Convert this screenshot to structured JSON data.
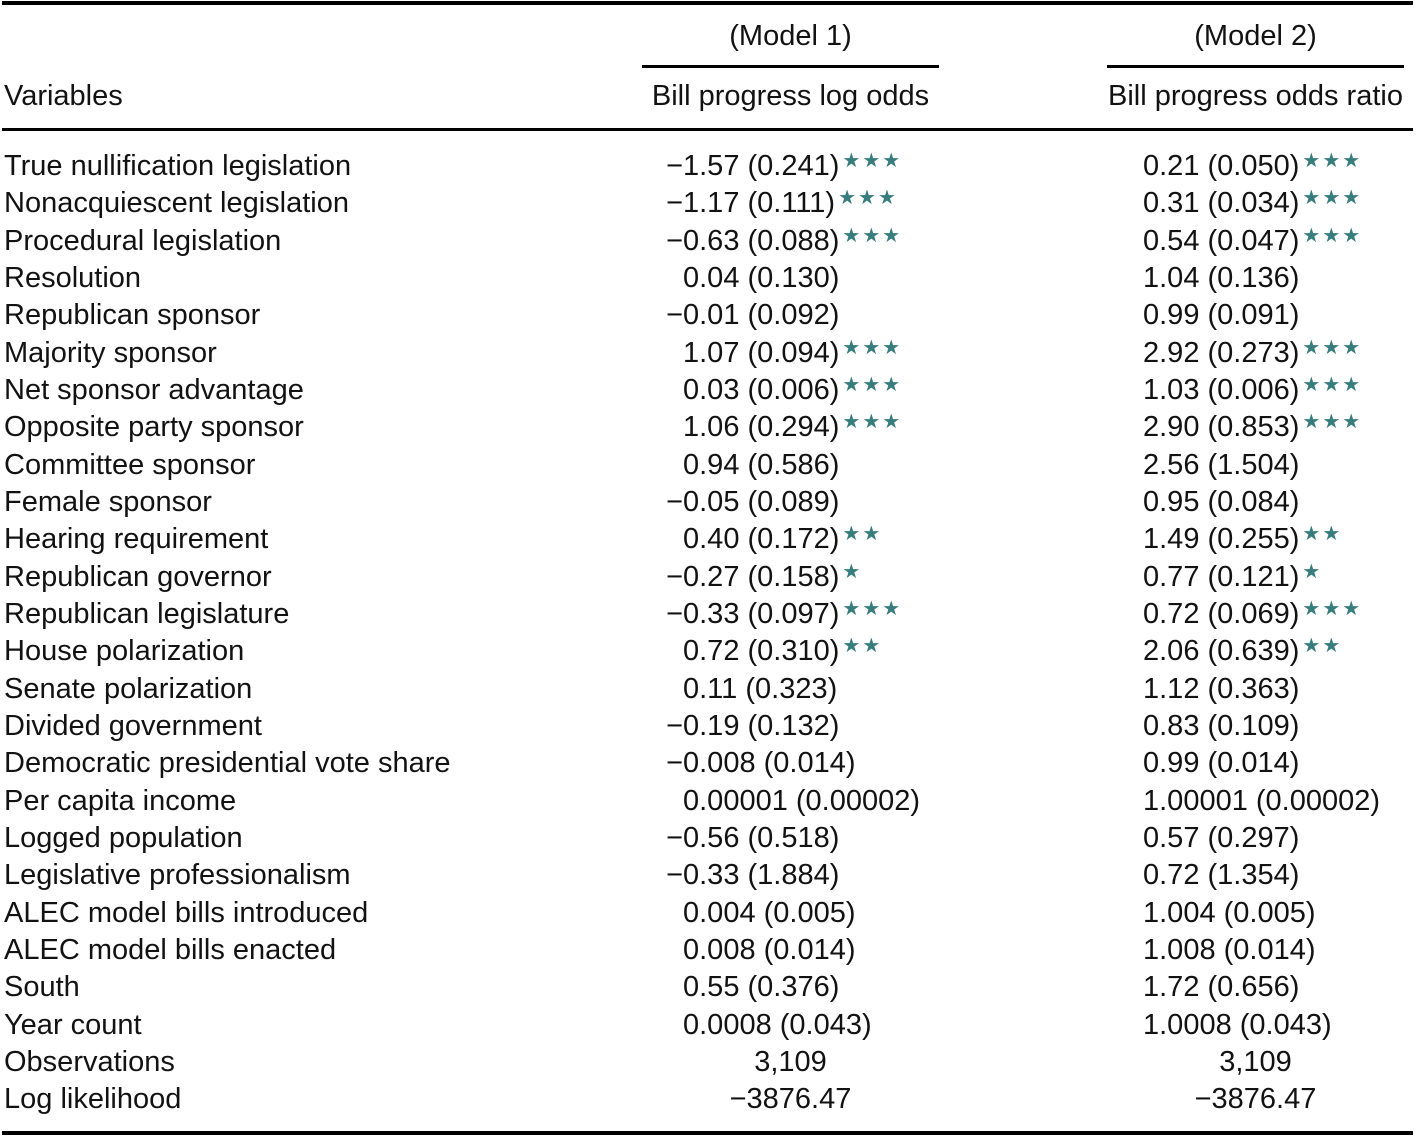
{
  "table": {
    "sig_color": "#377d7d",
    "header": {
      "variables_label": "Variables",
      "model1_label": "(Model 1)",
      "model2_label": "(Model 2)",
      "model1_col": "Bill progress log odds",
      "model2_col": "Bill progress odds ratio"
    },
    "rows": [
      {
        "type": "coef",
        "label": "True nullification legislation",
        "m1": {
          "sign": "−",
          "val": "1.57 (0.241)",
          "stars": "***"
        },
        "m2": {
          "sign": "",
          "val": "0.21 (0.050)",
          "stars": "***"
        }
      },
      {
        "type": "coef",
        "label": "Nonacquiescent legislation",
        "m1": {
          "sign": "−",
          "val": "1.17 (0.111)",
          "stars": "***"
        },
        "m2": {
          "sign": "",
          "val": "0.31 (0.034)",
          "stars": "***"
        }
      },
      {
        "type": "coef",
        "label": "Procedural legislation",
        "m1": {
          "sign": "−",
          "val": "0.63 (0.088)",
          "stars": "***"
        },
        "m2": {
          "sign": "",
          "val": "0.54 (0.047)",
          "stars": "***"
        }
      },
      {
        "type": "coef",
        "label": "Resolution",
        "m1": {
          "sign": "",
          "val": "0.04 (0.130)",
          "stars": ""
        },
        "m2": {
          "sign": "",
          "val": "1.04 (0.136)",
          "stars": ""
        }
      },
      {
        "type": "coef",
        "label": "Republican sponsor",
        "m1": {
          "sign": "−",
          "val": "0.01 (0.092)",
          "stars": ""
        },
        "m2": {
          "sign": "",
          "val": "0.99 (0.091)",
          "stars": ""
        }
      },
      {
        "type": "coef",
        "label": "Majority sponsor",
        "m1": {
          "sign": "",
          "val": "1.07 (0.094)",
          "stars": "***"
        },
        "m2": {
          "sign": "",
          "val": "2.92 (0.273)",
          "stars": "***"
        }
      },
      {
        "type": "coef",
        "label": "Net sponsor advantage",
        "m1": {
          "sign": "",
          "val": "0.03 (0.006)",
          "stars": "***"
        },
        "m2": {
          "sign": "",
          "val": "1.03 (0.006)",
          "stars": "***"
        }
      },
      {
        "type": "coef",
        "label": "Opposite party sponsor",
        "m1": {
          "sign": "",
          "val": "1.06 (0.294)",
          "stars": "***"
        },
        "m2": {
          "sign": "",
          "val": "2.90 (0.853)",
          "stars": "***"
        }
      },
      {
        "type": "coef",
        "label": "Committee sponsor",
        "m1": {
          "sign": "",
          "val": "0.94 (0.586)",
          "stars": ""
        },
        "m2": {
          "sign": "",
          "val": "2.56 (1.504)",
          "stars": ""
        }
      },
      {
        "type": "coef",
        "label": "Female sponsor",
        "m1": {
          "sign": "−",
          "val": "0.05 (0.089)",
          "stars": ""
        },
        "m2": {
          "sign": "",
          "val": "0.95 (0.084)",
          "stars": ""
        }
      },
      {
        "type": "coef",
        "label": "Hearing requirement",
        "m1": {
          "sign": "",
          "val": "0.40 (0.172)",
          "stars": "**"
        },
        "m2": {
          "sign": "",
          "val": "1.49 (0.255)",
          "stars": "**"
        }
      },
      {
        "type": "coef",
        "label": "Republican governor",
        "m1": {
          "sign": "−",
          "val": "0.27 (0.158)",
          "stars": "*"
        },
        "m2": {
          "sign": "",
          "val": "0.77 (0.121)",
          "stars": "*"
        }
      },
      {
        "type": "coef",
        "label": "Republican legislature",
        "m1": {
          "sign": "−",
          "val": "0.33 (0.097)",
          "stars": "***"
        },
        "m2": {
          "sign": "",
          "val": "0.72 (0.069)",
          "stars": "***"
        }
      },
      {
        "type": "coef",
        "label": "House polarization",
        "m1": {
          "sign": "",
          "val": "0.72 (0.310)",
          "stars": "**"
        },
        "m2": {
          "sign": "",
          "val": "2.06 (0.639)",
          "stars": "**"
        }
      },
      {
        "type": "coef",
        "label": "Senate polarization",
        "m1": {
          "sign": "",
          "val": "0.11 (0.323)",
          "stars": ""
        },
        "m2": {
          "sign": "",
          "val": "1.12 (0.363)",
          "stars": ""
        }
      },
      {
        "type": "coef",
        "label": "Divided government",
        "m1": {
          "sign": "−",
          "val": "0.19 (0.132)",
          "stars": ""
        },
        "m2": {
          "sign": "",
          "val": "0.83 (0.109)",
          "stars": ""
        }
      },
      {
        "type": "coef",
        "label": "Democratic presidential vote share",
        "m1": {
          "sign": "−",
          "val": "0.008 (0.014)",
          "stars": ""
        },
        "m2": {
          "sign": "",
          "val": "0.99 (0.014)",
          "stars": ""
        }
      },
      {
        "type": "coef",
        "label": "Per capita income",
        "m1": {
          "sign": "",
          "val": "0.00001 (0.00002)",
          "stars": ""
        },
        "m2": {
          "sign": "",
          "val": "1.00001 (0.00002)",
          "stars": ""
        }
      },
      {
        "type": "coef",
        "label": "Logged population",
        "m1": {
          "sign": "−",
          "val": "0.56 (0.518)",
          "stars": ""
        },
        "m2": {
          "sign": "",
          "val": "0.57 (0.297)",
          "stars": ""
        }
      },
      {
        "type": "coef",
        "label": "Legislative professionalism",
        "m1": {
          "sign": "−",
          "val": "0.33 (1.884)",
          "stars": ""
        },
        "m2": {
          "sign": "",
          "val": "0.72 (1.354)",
          "stars": ""
        }
      },
      {
        "type": "coef",
        "label": "ALEC model bills introduced",
        "m1": {
          "sign": "",
          "val": "0.004 (0.005)",
          "stars": ""
        },
        "m2": {
          "sign": "",
          "val": "1.004 (0.005)",
          "stars": ""
        }
      },
      {
        "type": "coef",
        "label": "ALEC model bills enacted",
        "m1": {
          "sign": "",
          "val": "0.008 (0.014)",
          "stars": ""
        },
        "m2": {
          "sign": "",
          "val": "1.008 (0.014)",
          "stars": ""
        }
      },
      {
        "type": "coef",
        "label": "South",
        "m1": {
          "sign": "",
          "val": "0.55 (0.376)",
          "stars": ""
        },
        "m2": {
          "sign": "",
          "val": "1.72 (0.656)",
          "stars": ""
        }
      },
      {
        "type": "coef",
        "label": "Year count",
        "m1": {
          "sign": "",
          "val": "0.0008 (0.043)",
          "stars": ""
        },
        "m2": {
          "sign": "",
          "val": "1.0008 (0.043)",
          "stars": ""
        }
      },
      {
        "type": "stat",
        "label": "Observations",
        "m1": {
          "val": "3,109"
        },
        "m2": {
          "val": "3,109"
        }
      },
      {
        "type": "stat",
        "label": "Log likelihood",
        "m1": {
          "val": "−3876.47"
        },
        "m2": {
          "val": "−3876.47"
        }
      }
    ]
  }
}
